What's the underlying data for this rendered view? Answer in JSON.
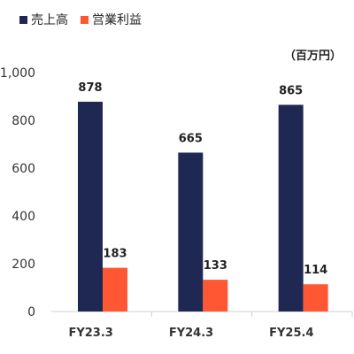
{
  "chart_data": {
    "type": "bar",
    "categories": [
      "FY23.3",
      "FY24.3",
      "FY25.4"
    ],
    "series": [
      {
        "name": "売上高",
        "values": [
          878,
          665,
          865
        ],
        "color": "#1f2753"
      },
      {
        "name": "営業利益",
        "values": [
          183,
          133,
          114
        ],
        "color": "#ff5733"
      }
    ],
    "unit_label": "（百万円）",
    "y_ticks": [
      "0",
      "200",
      "400",
      "600",
      "800",
      "1,000"
    ],
    "ylim": [
      0,
      1000
    ],
    "grid": false,
    "legend_position": "top-left"
  }
}
